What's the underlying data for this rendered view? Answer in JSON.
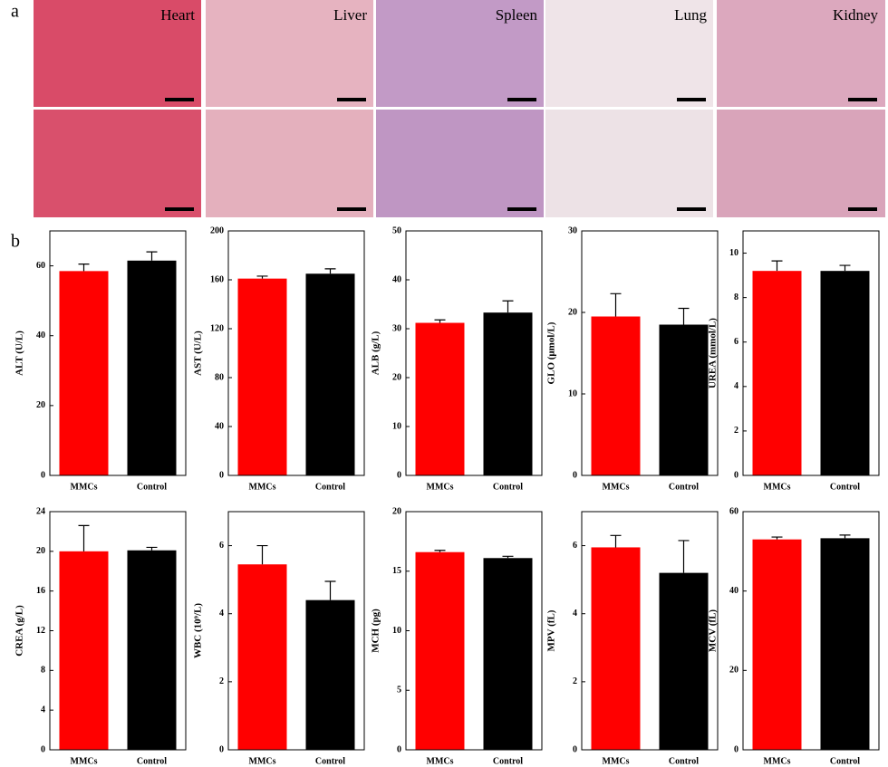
{
  "panel_labels": [
    "a",
    "b"
  ],
  "histology": {
    "labels": [
      "Heart",
      "Liver",
      "Spleen",
      "Lung",
      "Kidney"
    ]
  },
  "chart_data": [
    {
      "type": "bar",
      "y_label": "ALT (U/L)",
      "categories": [
        "MMCs",
        "Control"
      ],
      "values": [
        58.5,
        61.5
      ],
      "errors": [
        2,
        2.5
      ],
      "colors": [
        "#ff0000",
        "#000000"
      ],
      "ylim": [
        0,
        70
      ],
      "yticks": [
        0,
        20,
        40,
        60
      ]
    },
    {
      "type": "bar",
      "y_label": "AST (U/L)",
      "categories": [
        "MMCs",
        "Control"
      ],
      "values": [
        161,
        165
      ],
      "errors": [
        2,
        4
      ],
      "colors": [
        "#ff0000",
        "#000000"
      ],
      "ylim": [
        0,
        200
      ],
      "yticks": [
        0,
        40,
        80,
        120,
        160,
        200
      ]
    },
    {
      "type": "bar",
      "y_label": "ALB (g/L)",
      "categories": [
        "MMCs",
        "Control"
      ],
      "values": [
        31.2,
        33.3
      ],
      "errors": [
        0.6,
        2.4
      ],
      "colors": [
        "#ff0000",
        "#000000"
      ],
      "ylim": [
        0,
        50
      ],
      "yticks": [
        0,
        10,
        20,
        30,
        40,
        50
      ]
    },
    {
      "type": "bar",
      "y_label": "GLO (μmol/L)",
      "categories": [
        "MMCs",
        "Control"
      ],
      "values": [
        19.5,
        18.5
      ],
      "errors": [
        2.8,
        2
      ],
      "colors": [
        "#ff0000",
        "#000000"
      ],
      "ylim": [
        0,
        30
      ],
      "yticks": [
        0,
        10,
        20,
        30
      ]
    },
    {
      "type": "bar",
      "y_label": "UREA (mmol/L)",
      "categories": [
        "MMCs",
        "Control"
      ],
      "values": [
        9.2,
        9.2
      ],
      "errors": [
        0.45,
        0.25
      ],
      "colors": [
        "#ff0000",
        "#000000"
      ],
      "ylim": [
        0,
        11
      ],
      "yticks": [
        0,
        2,
        4,
        6,
        8,
        10
      ]
    },
    {
      "type": "bar",
      "y_label": "CREA (g/L)",
      "categories": [
        "MMCs",
        "Control"
      ],
      "values": [
        20,
        20.1
      ],
      "errors": [
        2.6,
        0.3
      ],
      "colors": [
        "#ff0000",
        "#000000"
      ],
      "ylim": [
        0,
        24
      ],
      "yticks": [
        0,
        4,
        8,
        12,
        16,
        20,
        24
      ]
    },
    {
      "type": "bar",
      "y_label": "WBC (10⁹/L)",
      "categories": [
        "MMCs",
        "Control"
      ],
      "values": [
        5.45,
        4.4
      ],
      "errors": [
        0.55,
        0.55
      ],
      "colors": [
        "#ff0000",
        "#000000"
      ],
      "ylim": [
        0,
        7
      ],
      "yticks": [
        0,
        2,
        4,
        6
      ]
    },
    {
      "type": "bar",
      "y_label": "MCH (pg)",
      "categories": [
        "MMCs",
        "Control"
      ],
      "values": [
        16.6,
        16.1
      ],
      "errors": [
        0.15,
        0.15
      ],
      "colors": [
        "#ff0000",
        "#000000"
      ],
      "ylim": [
        0,
        20
      ],
      "yticks": [
        0,
        5,
        10,
        15,
        20
      ]
    },
    {
      "type": "bar",
      "y_label": "MPV (fL)",
      "categories": [
        "MMCs",
        "Control"
      ],
      "values": [
        5.95,
        5.2
      ],
      "errors": [
        0.35,
        0.95
      ],
      "colors": [
        "#ff0000",
        "#000000"
      ],
      "ylim": [
        0,
        7
      ],
      "yticks": [
        0,
        2,
        4,
        6
      ]
    },
    {
      "type": "bar",
      "y_label": "MCV (fL)",
      "categories": [
        "MMCs",
        "Control"
      ],
      "values": [
        53,
        53.3
      ],
      "errors": [
        0.6,
        0.8
      ],
      "colors": [
        "#ff0000",
        "#000000"
      ],
      "ylim": [
        0,
        60
      ],
      "yticks": [
        0,
        20,
        40,
        60
      ]
    }
  ]
}
